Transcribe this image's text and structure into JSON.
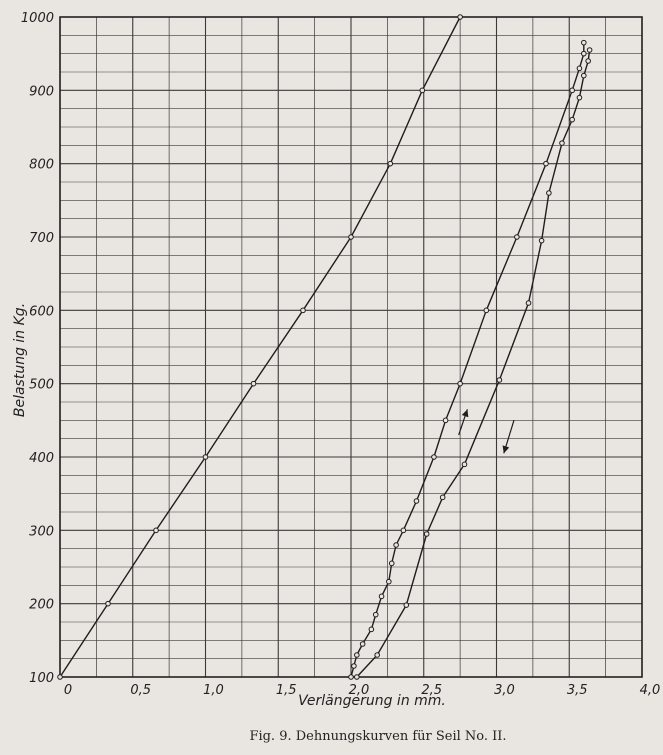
{
  "caption": "Fig. 9.   Dehnungskurven für Seil No. II.",
  "chart_data": {
    "type": "line",
    "xlabel": "Verlängerung in mm.",
    "ylabel": "Belastung in Kg.",
    "xlim": [
      0,
      4.0
    ],
    "ylim": [
      100,
      1000
    ],
    "x_ticks": [
      "0",
      "0,5",
      "1,0",
      "1,5",
      "2,0",
      "2,5",
      "3,0",
      "3,5",
      "4,0"
    ],
    "y_ticks": [
      "100",
      "200",
      "300",
      "400",
      "500",
      "600",
      "700",
      "800",
      "900",
      "1000"
    ],
    "grid": true,
    "series": [
      {
        "points": [
          [
            0,
            100
          ],
          [
            0.33,
            200
          ],
          [
            0.66,
            300
          ],
          [
            1.0,
            400
          ],
          [
            1.33,
            500
          ],
          [
            1.67,
            600
          ],
          [
            2.0,
            700
          ],
          [
            2.27,
            800
          ],
          [
            2.49,
            900
          ],
          [
            2.75,
            1000
          ]
        ]
      },
      {
        "points": [
          [
            2.0,
            100
          ],
          [
            2.02,
            115
          ],
          [
            2.04,
            130
          ],
          [
            2.08,
            145
          ],
          [
            2.14,
            165
          ],
          [
            2.17,
            185
          ],
          [
            2.21,
            210
          ],
          [
            2.26,
            230
          ],
          [
            2.28,
            255
          ],
          [
            2.31,
            280
          ],
          [
            2.36,
            300
          ],
          [
            2.45,
            340
          ],
          [
            2.57,
            400
          ],
          [
            2.65,
            450
          ],
          [
            2.75,
            500
          ],
          [
            2.93,
            600
          ],
          [
            3.14,
            700
          ],
          [
            3.34,
            800
          ],
          [
            3.52,
            900
          ],
          [
            3.57,
            930
          ],
          [
            3.6,
            950
          ],
          [
            3.6,
            965
          ]
        ]
      },
      {
        "points": [
          [
            3.64,
            955
          ],
          [
            3.63,
            940
          ],
          [
            3.6,
            920
          ],
          [
            3.57,
            890
          ],
          [
            3.52,
            860
          ],
          [
            3.45,
            828
          ],
          [
            3.36,
            760
          ],
          [
            3.31,
            695
          ],
          [
            3.22,
            610
          ],
          [
            3.02,
            505
          ],
          [
            2.78,
            390
          ],
          [
            2.63,
            345
          ],
          [
            2.52,
            295
          ],
          [
            2.38,
            198
          ],
          [
            2.18,
            130
          ],
          [
            2.04,
            100
          ]
        ]
      }
    ],
    "annotations": [
      {
        "type": "arrow",
        "direction": "up",
        "from": [
          2.74,
          430
        ],
        "to": [
          2.8,
          465
        ]
      },
      {
        "type": "arrow",
        "direction": "down",
        "from": [
          3.12,
          450
        ],
        "to": [
          3.05,
          405
        ]
      }
    ]
  }
}
